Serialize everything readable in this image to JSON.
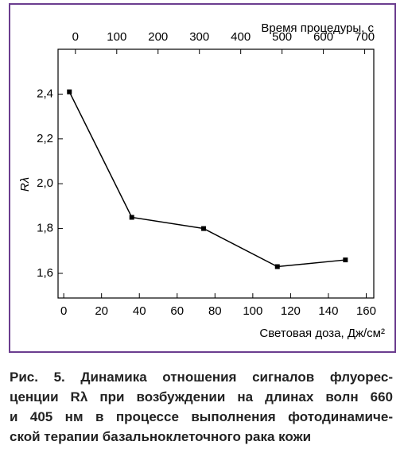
{
  "chart_data": {
    "type": "line",
    "x_label": "Световая доза, Дж/см²",
    "x2_label": "Время процедуры, с",
    "y_label": "Rλ",
    "x": [
      3,
      36,
      74,
      113,
      149
    ],
    "series": [
      {
        "color": "#000000",
        "values": [
          2.41,
          1.85,
          1.8,
          1.63,
          1.66
        ]
      }
    ],
    "xlim": [
      -3,
      164
    ],
    "xticks": [
      0,
      20,
      40,
      60,
      80,
      100,
      120,
      140,
      160
    ],
    "x2lim": [
      -42,
      722
    ],
    "x2ticks": [
      0,
      100,
      200,
      300,
      400,
      500,
      600,
      700
    ],
    "ylim": [
      1.49,
      2.6
    ],
    "yticks": [
      {
        "value": 1.6,
        "label": "1,6"
      },
      {
        "value": 1.8,
        "label": "1,8"
      },
      {
        "value": 2.0,
        "label": "2,0"
      },
      {
        "value": 2.2,
        "label": "2,2"
      },
      {
        "value": 2.4,
        "label": "2,4"
      }
    ],
    "grid": false,
    "frame_color": "#6b3d8f"
  },
  "caption": [
    "Рис. 5. Динамика отношения сигналов флуорес-",
    "ценции Rλ при возбуждении на длинах волн 660",
    "и 405 нм в процессе выполнения фотодинамиче-",
    "ской терапии базальноклеточного рака кожи"
  ]
}
